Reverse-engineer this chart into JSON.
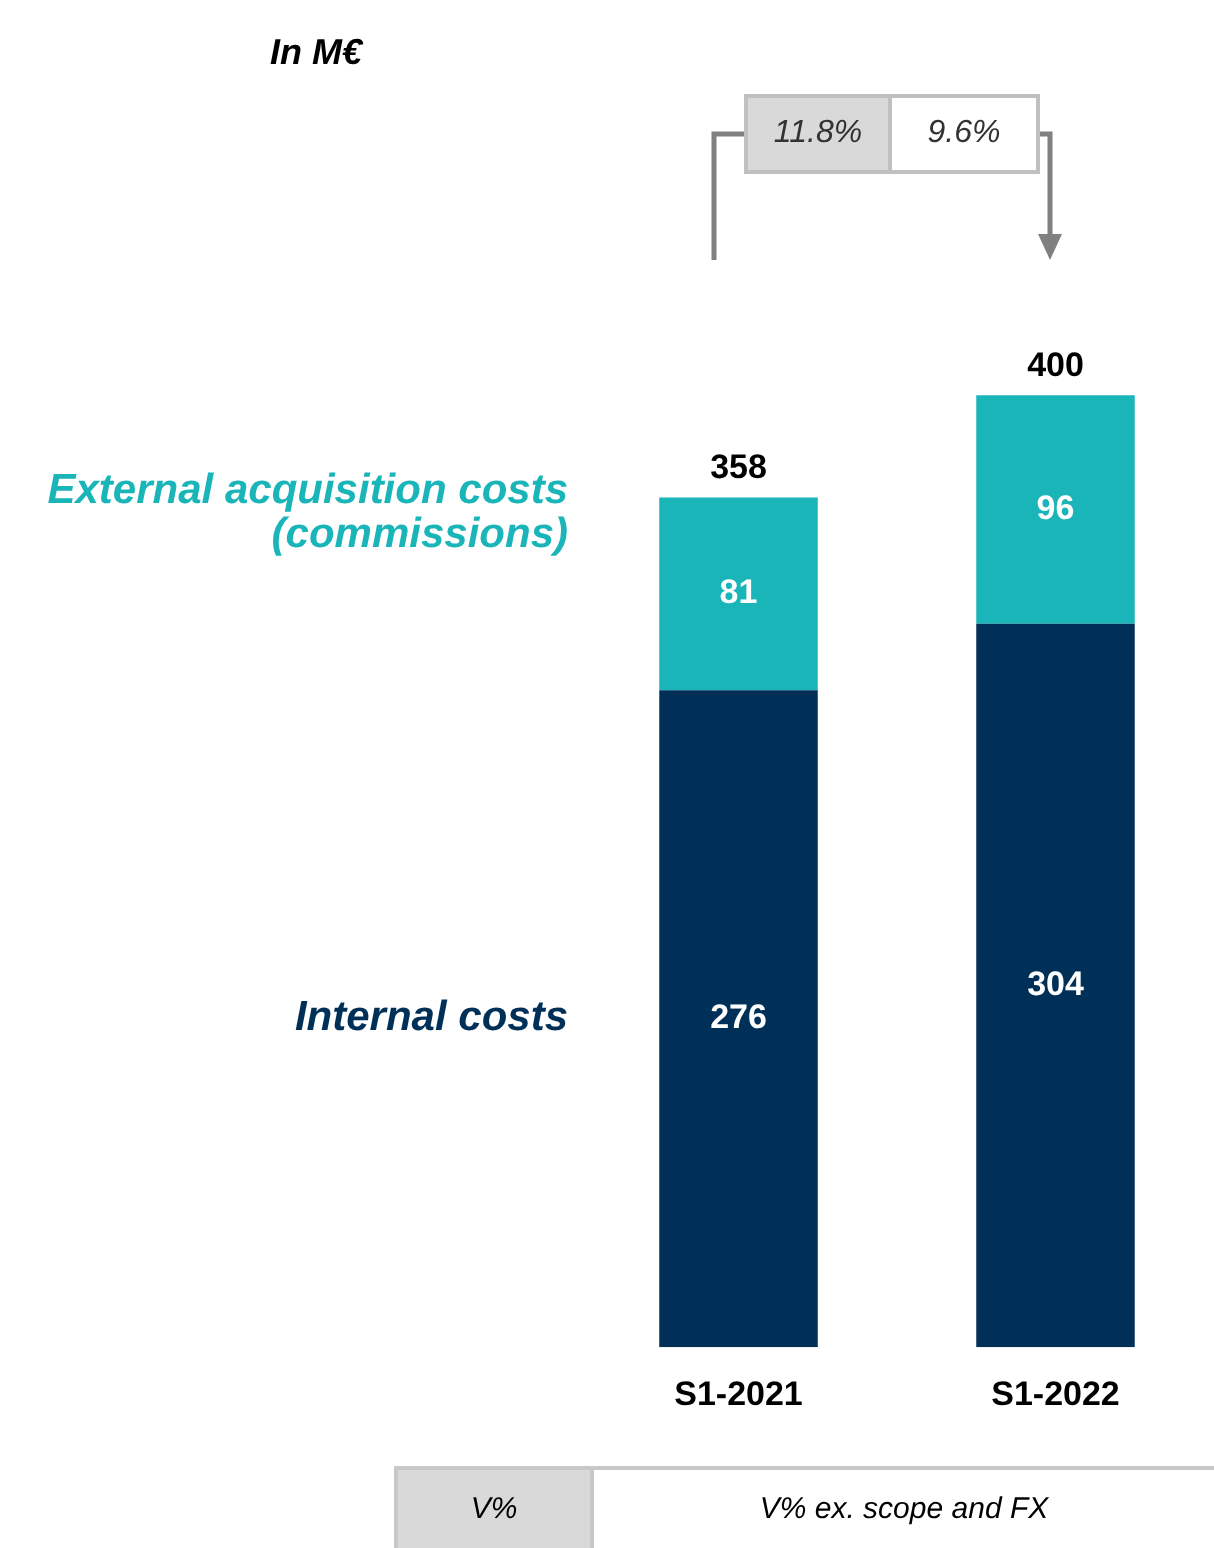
{
  "chart_data": {
    "type": "bar",
    "stacked": true,
    "categories": [
      "S1-2021",
      "S1-2022"
    ],
    "series": [
      {
        "name": "Internal costs",
        "color": "#003057",
        "values": [
          276,
          304
        ]
      },
      {
        "name": "External acquisition costs (commissions)",
        "color": "#1ab5b8",
        "values": [
          81,
          96
        ]
      }
    ],
    "totals": [
      "358",
      "400"
    ],
    "data_labels": true,
    "legend": false,
    "grid": false,
    "annotations": [
      "In M€",
      "11.8%",
      "9.6%",
      "V%",
      "V% ex. scope and FX"
    ]
  }
}
